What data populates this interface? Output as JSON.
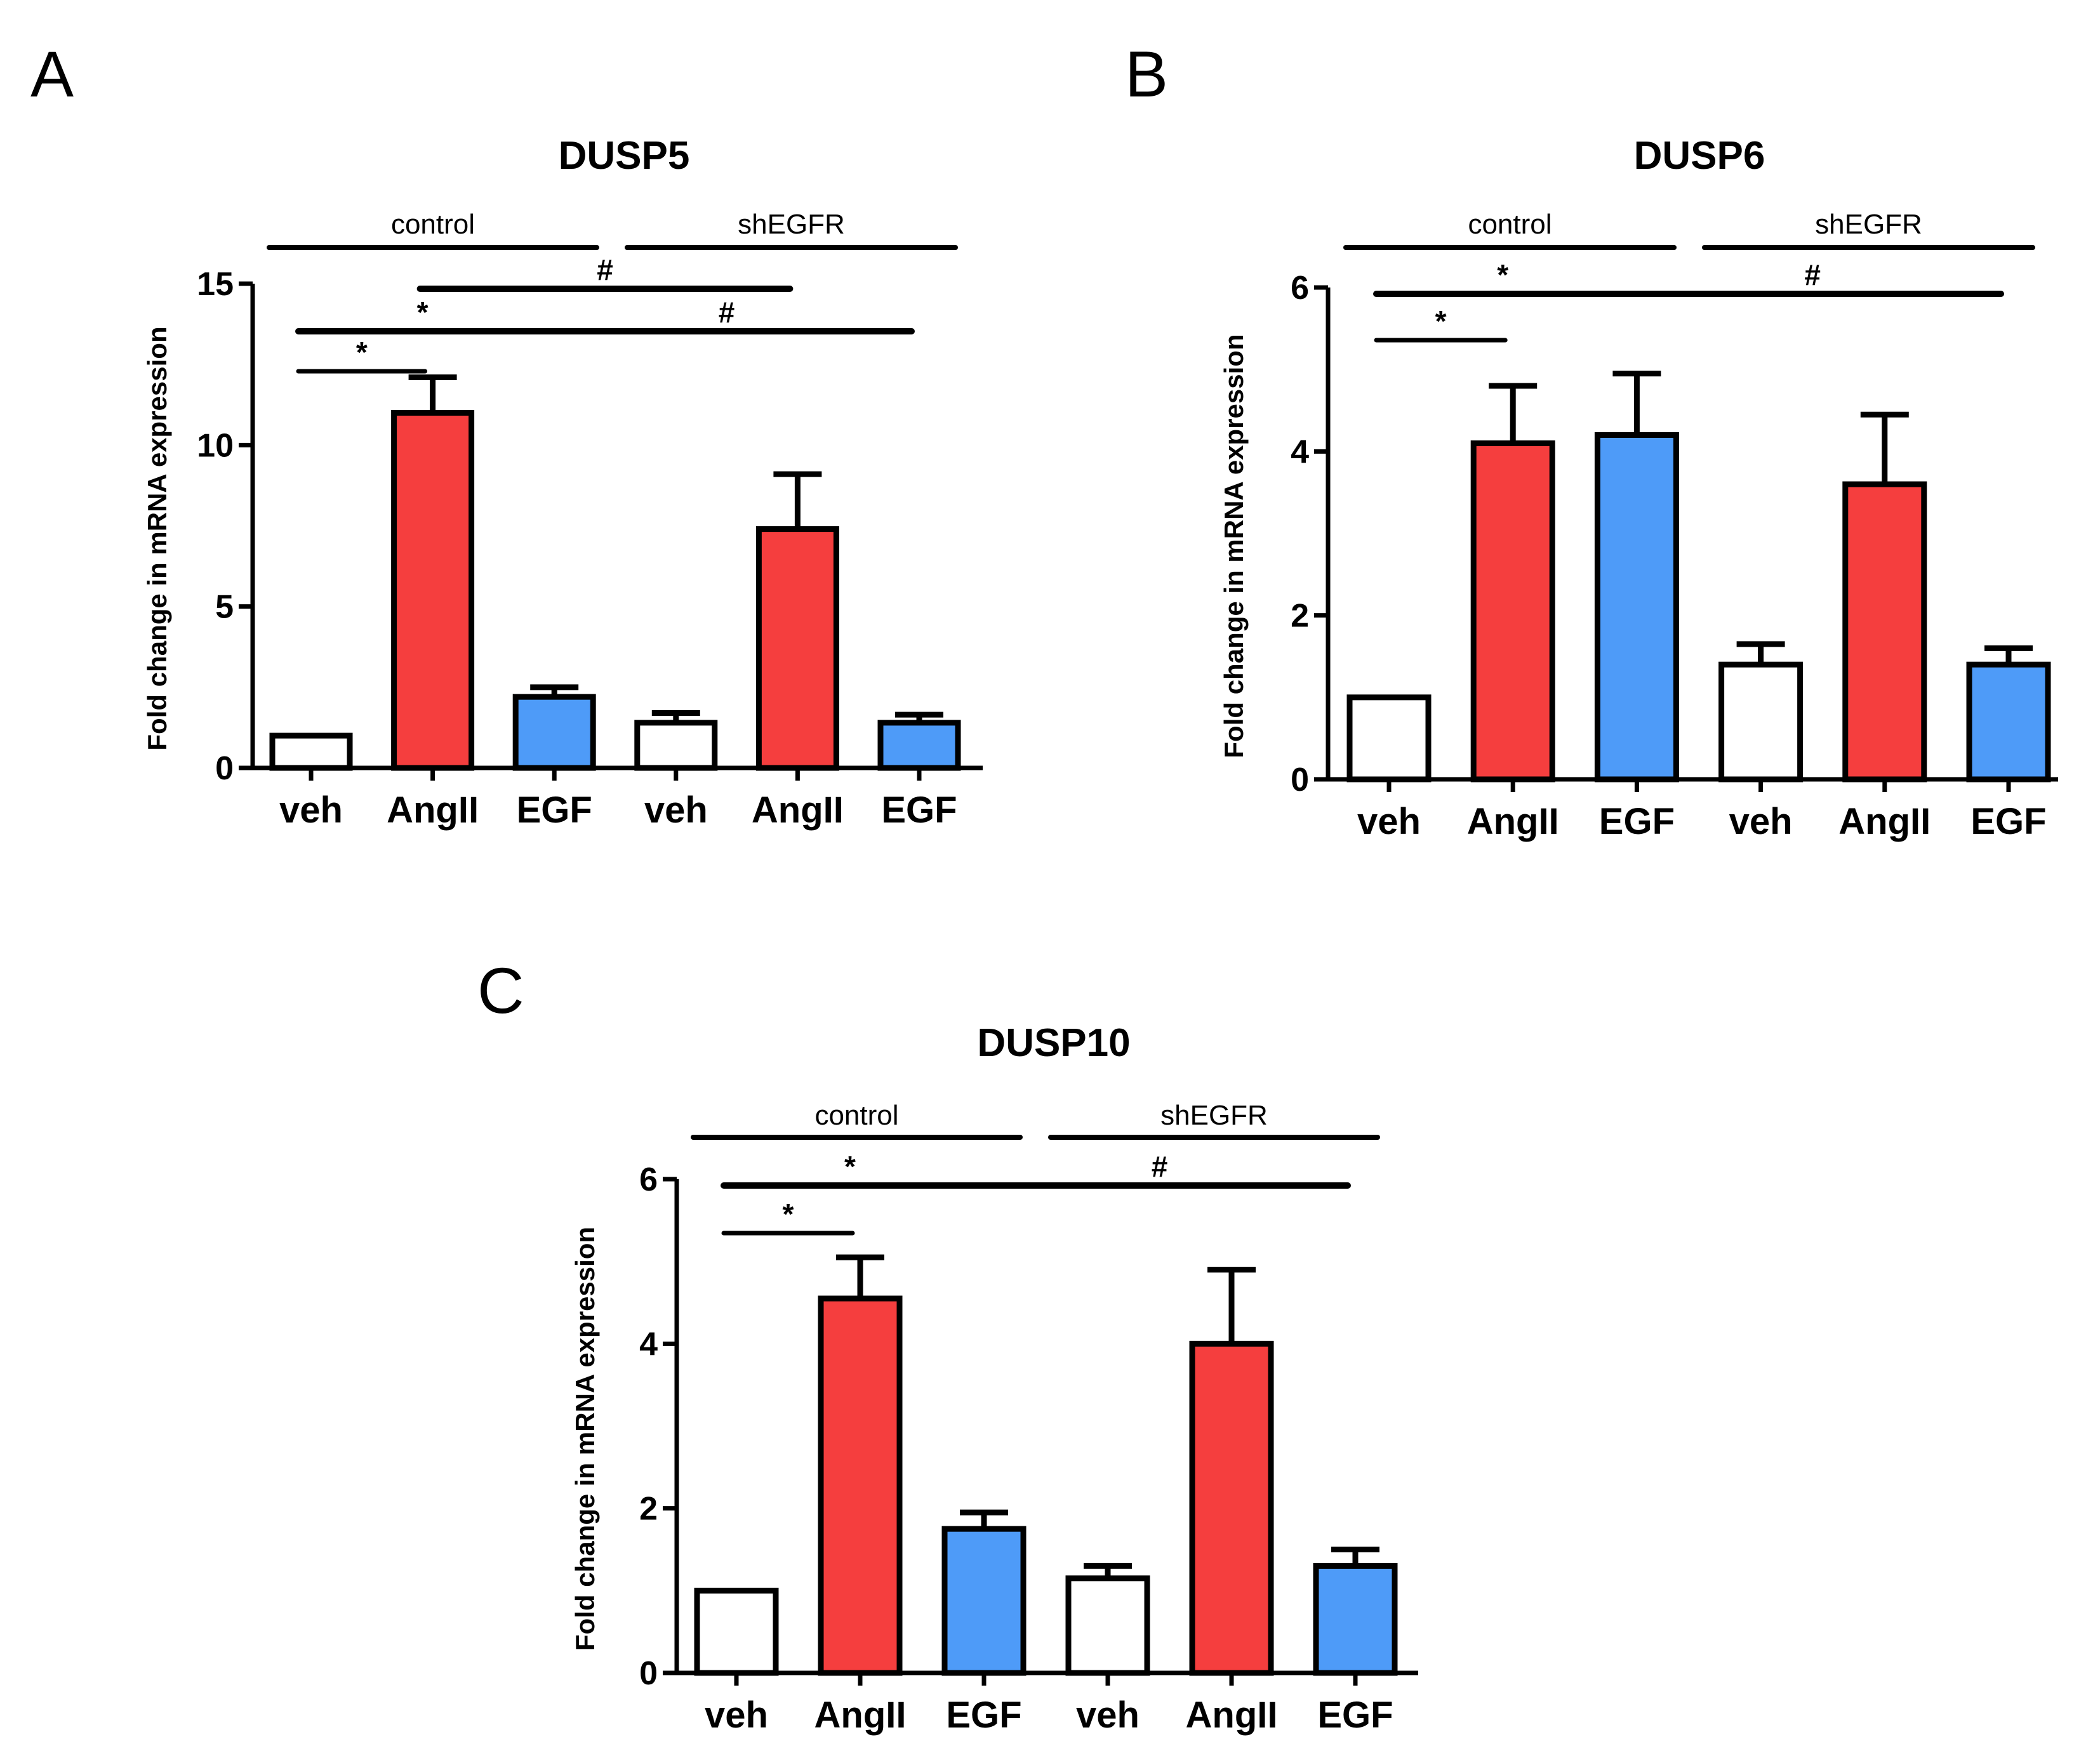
{
  "figure": {
    "panels": [
      "A",
      "B",
      "C"
    ]
  },
  "colors": {
    "veh": "#ffffff",
    "AngII": "#f53e3e",
    "EGF": "#4e9bf8",
    "stroke": "#000000"
  },
  "chart_data": [
    {
      "type": "bar",
      "panel": "A",
      "title": "DUSP5",
      "ylabel": "Fold change in mRNA expression",
      "xlabel": "",
      "ylim": [
        0,
        15
      ],
      "yticks": [
        0,
        5,
        10,
        15
      ],
      "groups": [
        "control",
        "shEGFR"
      ],
      "categories": [
        "veh",
        "AngII",
        "EGF",
        "veh",
        "AngII",
        "EGF"
      ],
      "series": [
        {
          "name": "fold change",
          "values": [
            1.0,
            11.0,
            2.2,
            1.4,
            7.4,
            1.4
          ],
          "errors": [
            0,
            1.1,
            0.3,
            0.3,
            1.7,
            0.25
          ],
          "fills": [
            "veh",
            "AngII",
            "EGF",
            "veh",
            "AngII",
            "EGF"
          ]
        }
      ],
      "significance": [
        {
          "from": 0,
          "to": 1,
          "symbol": "*"
        },
        {
          "from": 0,
          "to": 2,
          "symbol": "*"
        },
        {
          "from": 1,
          "to": 4,
          "symbol": "#"
        },
        {
          "from": 2,
          "to": 5,
          "symbol": "#"
        }
      ]
    },
    {
      "type": "bar",
      "panel": "B",
      "title": "DUSP6",
      "ylabel": "Fold change in mRNA expression",
      "xlabel": "",
      "ylim": [
        0,
        6
      ],
      "yticks": [
        0,
        2,
        4,
        6
      ],
      "groups": [
        "control",
        "shEGFR"
      ],
      "categories": [
        "veh",
        "AngII",
        "EGF",
        "veh",
        "AngII",
        "EGF"
      ],
      "series": [
        {
          "name": "fold change",
          "values": [
            1.0,
            4.1,
            4.2,
            1.4,
            3.6,
            1.4
          ],
          "errors": [
            0,
            0.7,
            0.75,
            0.25,
            0.85,
            0.2
          ],
          "fills": [
            "veh",
            "AngII",
            "EGF",
            "veh",
            "AngII",
            "EGF"
          ]
        }
      ],
      "significance": [
        {
          "from": 0,
          "to": 1,
          "symbol": "*"
        },
        {
          "from": 0,
          "to": 2,
          "symbol": "*"
        },
        {
          "from": 2,
          "to": 5,
          "symbol": "#"
        }
      ]
    },
    {
      "type": "bar",
      "panel": "C",
      "title": "DUSP10",
      "ylabel": "Fold change in mRNA expression",
      "xlabel": "",
      "ylim": [
        0,
        6
      ],
      "yticks": [
        0,
        2,
        4,
        6
      ],
      "groups": [
        "control",
        "shEGFR"
      ],
      "categories": [
        "veh",
        "AngII",
        "EGF",
        "veh",
        "AngII",
        "EGF"
      ],
      "series": [
        {
          "name": "fold change",
          "values": [
            1.0,
            4.55,
            1.75,
            1.15,
            4.0,
            1.3
          ],
          "errors": [
            0,
            0.5,
            0.2,
            0.15,
            0.9,
            0.2
          ],
          "fills": [
            "veh",
            "AngII",
            "EGF",
            "veh",
            "AngII",
            "EGF"
          ]
        }
      ],
      "significance": [
        {
          "from": 0,
          "to": 1,
          "symbol": "*"
        },
        {
          "from": 0,
          "to": 2,
          "symbol": "*"
        },
        {
          "from": 2,
          "to": 5,
          "symbol": "#"
        }
      ]
    }
  ]
}
